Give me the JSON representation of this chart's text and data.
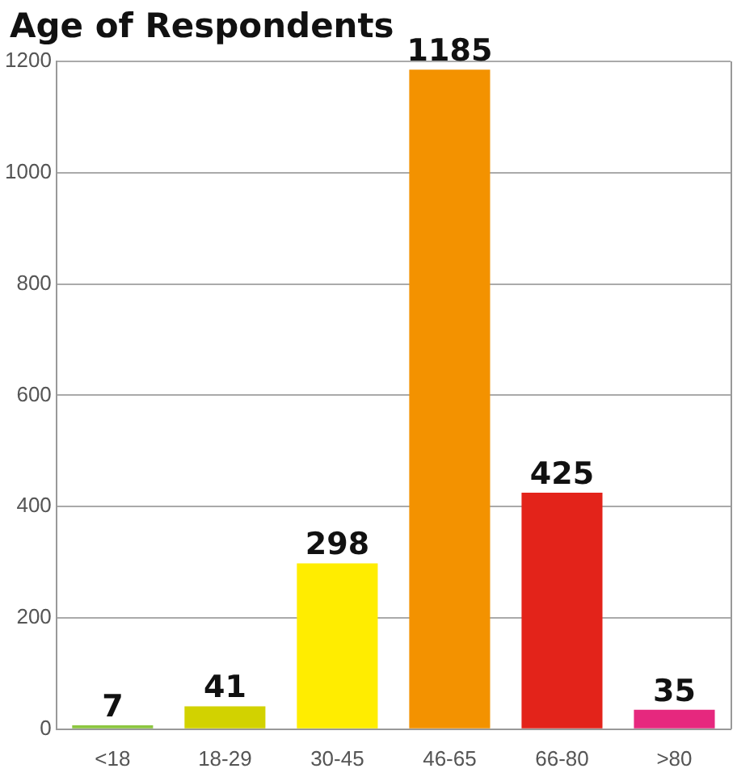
{
  "chart_data": {
    "type": "bar",
    "title": "Age of Respondents",
    "categories": [
      "<18",
      "18-29",
      "30-45",
      "46-65",
      "66-80",
      ">80"
    ],
    "values": [
      7,
      41,
      298,
      1185,
      425,
      35
    ],
    "colors": [
      "#8cc63f",
      "#d2d200",
      "#ffed00",
      "#f39200",
      "#e3231a",
      "#e6287e"
    ],
    "ylim": [
      0,
      1200
    ],
    "yticks": [
      0,
      200,
      400,
      600,
      800,
      1000,
      1200
    ],
    "grid": "y",
    "data_labels": true,
    "legend": false
  }
}
